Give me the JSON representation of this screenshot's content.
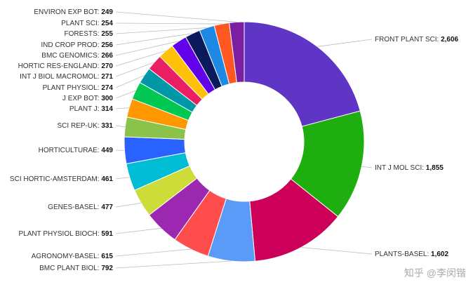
{
  "chart_data": {
    "type": "pie",
    "donut": true,
    "title": "",
    "categories": [
      "FRONT PLANT SCI",
      "INT J MOL SCI",
      "PLANTS-BASEL",
      "BMC PLANT BIOL",
      "AGRONOMY-BASEL",
      "PLANT PHYSIOL BIOCH",
      "GENES-BASEL",
      "SCI HORTIC-AMSTERDAM",
      "HORTICULTURAE",
      "SCI REP-UK",
      "PLANT J",
      "J EXP BOT",
      "PLANT PHYSIOL",
      "INT J BIOL MACROMOL",
      "HORTIC RES-ENGLAND",
      "BMC GENOMICS",
      "IND CROP PROD",
      "FORESTS",
      "PLANT SCI",
      "ENVIRON EXP BOT"
    ],
    "values": [
      2606,
      1855,
      1602,
      792,
      615,
      591,
      477,
      461,
      449,
      331,
      314,
      300,
      274,
      271,
      270,
      266,
      256,
      255,
      254,
      249
    ],
    "value_labels": [
      "2,606",
      "1,855",
      "1,602",
      "792",
      "615",
      "591",
      "477",
      "461",
      "449",
      "331",
      "314",
      "300",
      "274",
      "271",
      "270",
      "266",
      "256",
      "255",
      "254",
      "249"
    ],
    "colors": [
      "#5e35c4",
      "#1fae0f",
      "#cc0058",
      "#5b9bf8",
      "#ff4d4d",
      "#9c27b0",
      "#cddc39",
      "#00bcd4",
      "#2962ff",
      "#8bc34a",
      "#ff9800",
      "#00c853",
      "#0097a7",
      "#e91e63",
      "#ffc107",
      "#6200ea",
      "#0a1a5c",
      "#1e88e5",
      "#ff5722",
      "#7b1fa2"
    ],
    "legend": "none"
  },
  "watermark": "知乎 @李闵锴"
}
